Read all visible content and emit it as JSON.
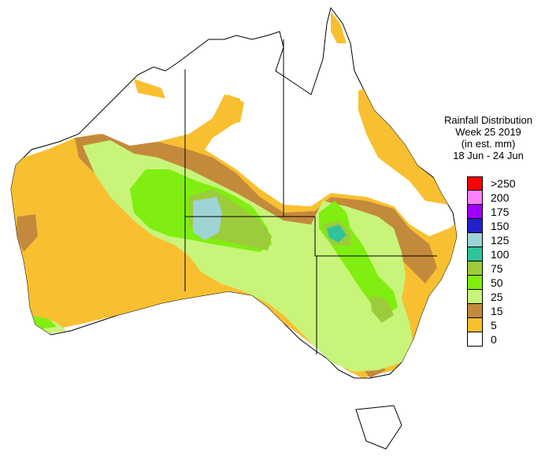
{
  "title_lines": [
    "Rainfall Distribution",
    "Week 25 2019",
    "(in est. mm)",
    "18 Jun - 24 Jun"
  ],
  "legend": [
    {
      "label": ">250",
      "color": "#ff0000"
    },
    {
      "label": "200",
      "color": "#ff80ff"
    },
    {
      "label": "175",
      "color": "#a000ff"
    },
    {
      "label": "150",
      "color": "#2222cc"
    },
    {
      "label": "125",
      "color": "#9fd4d4"
    },
    {
      "label": "100",
      "color": "#30c49a"
    },
    {
      "label": "75",
      "color": "#9ccc3c"
    },
    {
      "label": "50",
      "color": "#80ee10"
    },
    {
      "label": "25",
      "color": "#c8f47a"
    },
    {
      "label": "15",
      "color": "#c48a3c"
    },
    {
      "label": "5",
      "color": "#f8c030"
    },
    {
      "label": "0",
      "color": "#ffffff"
    }
  ]
}
